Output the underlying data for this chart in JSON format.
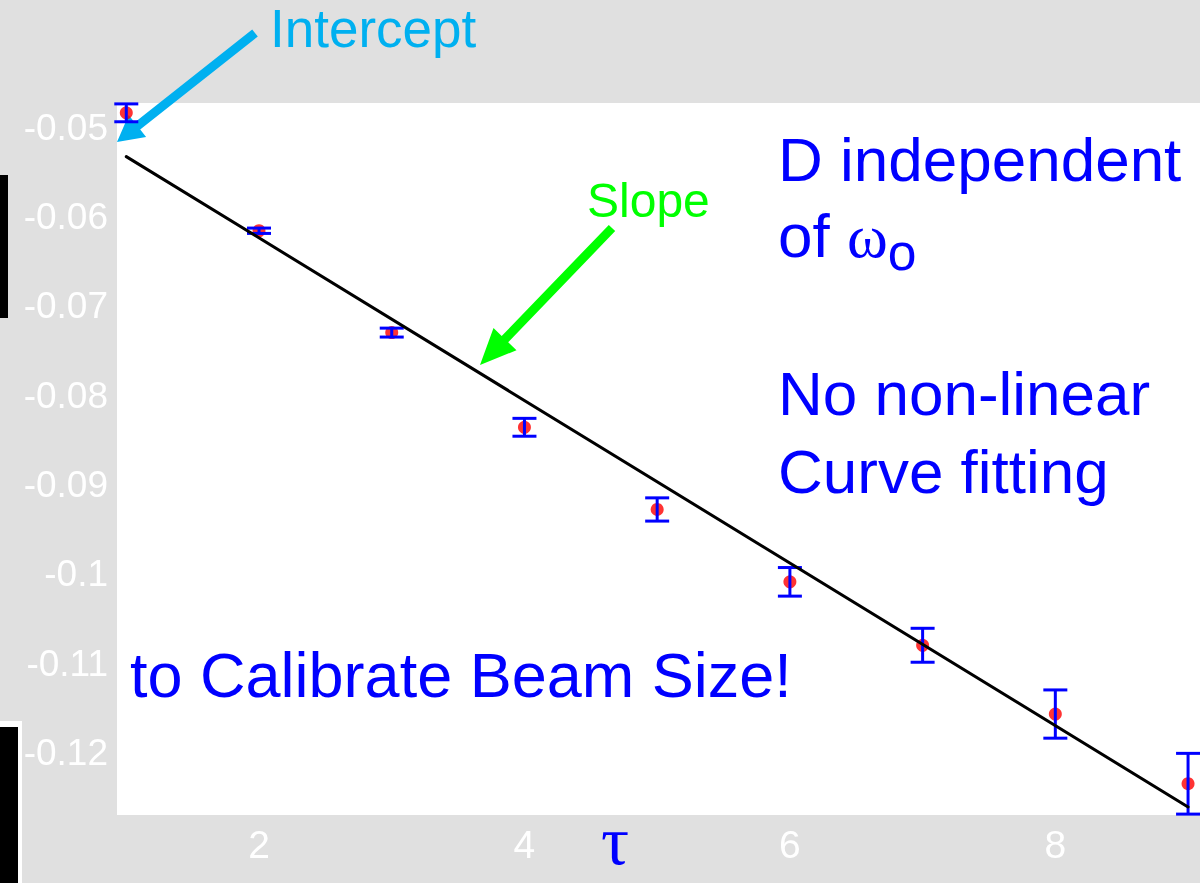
{
  "chart_data": {
    "type": "scatter",
    "xlabel": "τ",
    "annotations": [
      "Intercept",
      "Slope",
      "D independent of ω$_{o}$",
      "No non-linear Curve fitting",
      "to Calibrate Beam Size!"
    ],
    "xlim": [
      0.93,
      9.09
    ],
    "ylim": [
      -0.127,
      -0.0473
    ],
    "xticks": [
      2,
      4,
      6,
      8
    ],
    "yticks": [
      -0.12,
      -0.11,
      -0.1,
      -0.09,
      -0.08,
      -0.07,
      -0.06,
      -0.05
    ],
    "series": [
      {
        "x": [
          1,
          2,
          3,
          4,
          5,
          6,
          7,
          8,
          9
        ],
        "values": [
          -0.0484,
          -0.0616,
          -0.073,
          -0.0836,
          -0.0928,
          -0.1009,
          -0.108,
          -0.1157,
          -0.1235
        ],
        "errors": [
          0.001,
          0.0003,
          0.0005,
          0.001,
          0.0013,
          0.0016,
          0.0019,
          0.0027,
          0.0034
        ],
        "color": "#ff0000",
        "marker": "circle"
      },
      {
        "type": "line",
        "x": [
          1,
          9
        ],
        "values": [
          -0.0533,
          -0.1261
        ],
        "color": "#000000",
        "marker": "none",
        "line_style": "solid"
      }
    ]
  }
}
